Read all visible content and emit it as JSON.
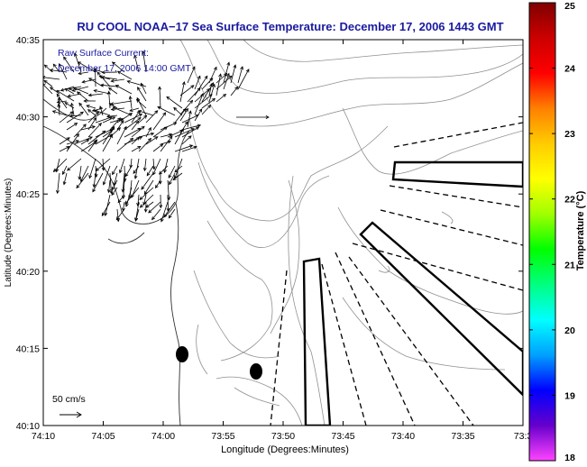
{
  "title": "RU COOL  NOAA−17  Sea Surface Temperature:  December 17, 2006 1443 GMT",
  "annotation": {
    "line1": "Raw Surface Current:",
    "line2": "December 17, 2006 14:00 GMT"
  },
  "scale_label": "50 cm/s",
  "x_axis": {
    "label": "Longitude (Degrees:Minutes)",
    "ticks": [
      "74:10",
      "74:05",
      "74:00",
      "73:55",
      "73:50",
      "73:45",
      "73:40",
      "73:35",
      "73:3"
    ]
  },
  "y_axis": {
    "label": "Latitude (Degrees:Minutes)",
    "ticks": [
      "40:35",
      "40:30",
      "40:25",
      "40:20",
      "40:15",
      "40:10"
    ]
  },
  "colorbar": {
    "label": "Temperature (°C)",
    "ticks": [
      "25",
      "24",
      "23",
      "22",
      "21",
      "20",
      "19",
      "18"
    ],
    "range": [
      18,
      25
    ],
    "colors": [
      "#ff44ff",
      "#6600cc",
      "#0000ff",
      "#00a0ff",
      "#00ffff",
      "#00ff80",
      "#00ff00",
      "#a0ff00",
      "#ffff00",
      "#ffcc00",
      "#ff8000",
      "#ff0000",
      "#cc0000",
      "#800000"
    ]
  },
  "colors": {
    "title": "#1a1aa0",
    "annotation": "#1a1aa0",
    "frame": "#000000",
    "contour": "#909090"
  }
}
